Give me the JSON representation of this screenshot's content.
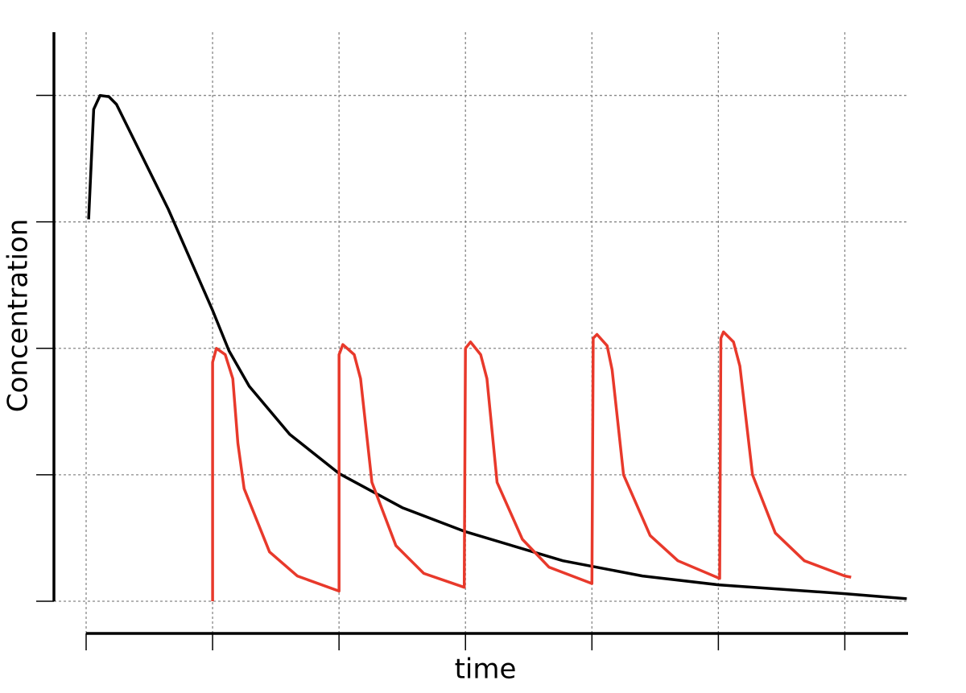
{
  "chart_data": {
    "type": "line",
    "xlabel": "time",
    "ylabel": "Concentration",
    "xlim": [
      0,
      6.5
    ],
    "ylim": [
      0,
      4.5
    ],
    "xticks": [
      0,
      1,
      2,
      3,
      4,
      5,
      6
    ],
    "yticks": [
      0,
      1,
      2,
      3,
      4
    ],
    "grid": true,
    "series": [
      {
        "color": "#000000",
        "x": [
          0.02,
          0.06,
          0.11,
          0.18,
          0.24,
          0.65,
          1.0,
          1.13,
          1.29,
          1.61,
          2.0,
          2.5,
          3.0,
          3.77,
          4.4,
          5.0,
          6.0,
          6.49
        ],
        "values": [
          3.02,
          3.89,
          4.0,
          3.99,
          3.93,
          3.1,
          2.3,
          1.98,
          1.7,
          1.32,
          1.01,
          0.74,
          0.55,
          0.32,
          0.2,
          0.13,
          0.06,
          0.02
        ]
      },
      {
        "color": "#e8392b",
        "x": [
          1.0,
          1.0,
          1.03,
          1.1,
          1.16,
          1.2,
          1.25,
          1.45,
          1.67,
          2.0,
          2.0,
          2.03,
          2.12,
          2.17,
          2.26,
          2.45,
          2.67,
          2.99,
          3.0,
          3.04,
          3.12,
          3.17,
          3.25,
          3.45,
          3.66,
          4.0,
          4.01,
          4.04,
          4.12,
          4.16,
          4.25,
          4.46,
          4.68,
          5.01,
          5.02,
          5.04,
          5.12,
          5.17,
          5.27,
          5.45,
          5.68,
          6.0,
          6.05
        ],
        "values": [
          0,
          1.89,
          2.0,
          1.95,
          1.76,
          1.25,
          0.89,
          0.39,
          0.2,
          0.08,
          1.95,
          2.03,
          1.95,
          1.76,
          0.94,
          0.44,
          0.22,
          0.11,
          2.0,
          2.05,
          1.95,
          1.76,
          0.94,
          0.49,
          0.27,
          0.14,
          2.08,
          2.11,
          2.02,
          1.83,
          1.0,
          0.52,
          0.32,
          0.18,
          2.08,
          2.13,
          2.05,
          1.86,
          1.0,
          0.54,
          0.32,
          0.2,
          0.19
        ]
      }
    ]
  }
}
